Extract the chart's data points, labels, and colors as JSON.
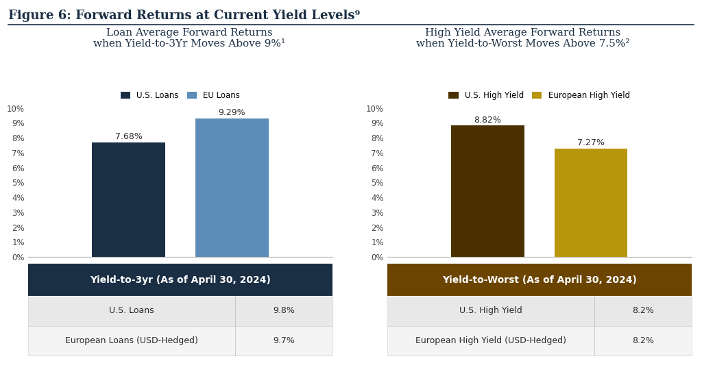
{
  "figure_title": "Figure 6: Forward Returns at Current Yield Levels⁹",
  "left_chart": {
    "title_line1": "Loan Average Forward Returns",
    "title_line2": "when Yield-to-3Yr Moves Above 9%¹",
    "legend": [
      "U.S. Loans",
      "EU Loans"
    ],
    "bar_colors": [
      "#1a2e44",
      "#5b8db8"
    ],
    "values": [
      7.68,
      9.29
    ],
    "bar_labels": [
      "7.68%",
      "9.29%"
    ],
    "ylim": [
      0,
      10
    ],
    "yticks": [
      0,
      1,
      2,
      3,
      4,
      5,
      6,
      7,
      8,
      9,
      10
    ],
    "ytick_labels": [
      "0%",
      "1%",
      "2%",
      "3%",
      "4%",
      "5%",
      "6%",
      "7%",
      "8%",
      "9%",
      "10%"
    ],
    "table_header": "Yield-to-3yr (As of April 30, 2024)",
    "table_header_color": "#1a2e44",
    "table_rows": [
      [
        "U.S. Loans",
        "9.8%"
      ],
      [
        "European Loans (USD-Hedged)",
        "9.7%"
      ]
    ]
  },
  "right_chart": {
    "title_line1": "High Yield Average Forward Returns",
    "title_line2": "when Yield-to-Worst Moves Above 7.5%²",
    "legend": [
      "U.S. High Yield",
      "European High Yield"
    ],
    "bar_colors": [
      "#4a3000",
      "#b8960c"
    ],
    "values": [
      8.82,
      7.27
    ],
    "bar_labels": [
      "8.82%",
      "7.27%"
    ],
    "ylim": [
      0,
      10
    ],
    "yticks": [
      0,
      1,
      2,
      3,
      4,
      5,
      6,
      7,
      8,
      9,
      10
    ],
    "ytick_labels": [
      "0%",
      "1%",
      "2%",
      "3%",
      "4%",
      "5%",
      "6%",
      "7%",
      "8%",
      "9%",
      "10%"
    ],
    "table_header": "Yield-to-Worst (As of April 30, 2024)",
    "table_header_color": "#6b4400",
    "table_rows": [
      [
        "U.S. High Yield",
        "8.2%"
      ],
      [
        "European High Yield (USD-Hedged)",
        "8.2%"
      ]
    ]
  },
  "bg_color": "#ffffff",
  "title_color": "#1a2e44",
  "text_color": "#2a2a2a",
  "title_fontsize": 13,
  "subtitle_fontsize": 11,
  "bar_label_fontsize": 9,
  "tick_fontsize": 8.5,
  "legend_fontsize": 8.5,
  "table_header_fontsize": 10,
  "table_fontsize": 9,
  "axis_label_color": "#444444"
}
